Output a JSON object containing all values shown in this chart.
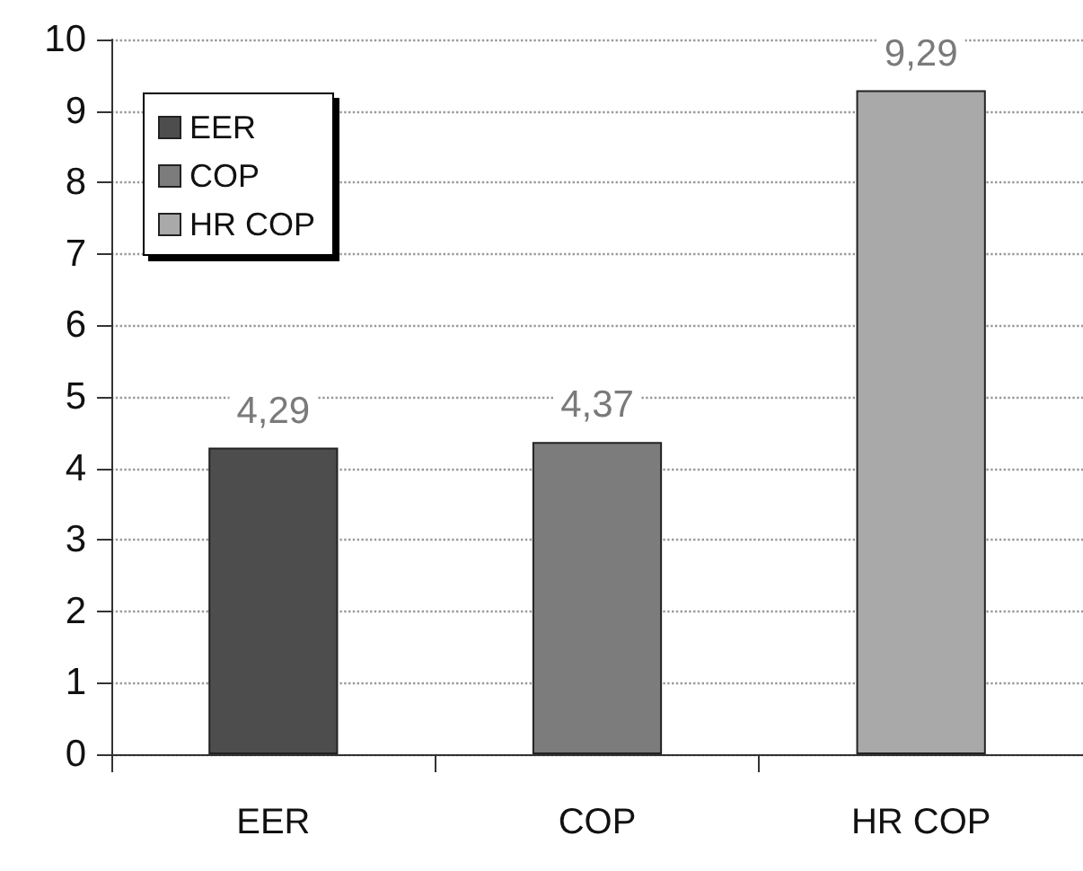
{
  "chart_data": {
    "type": "bar",
    "categories": [
      "EER",
      "COP",
      "HR COP"
    ],
    "series": [
      {
        "name": "EER",
        "color": "#4d4d4d",
        "values": [
          4.29,
          null,
          null
        ],
        "value_labels": [
          "4,29",
          null,
          null
        ]
      },
      {
        "name": "COP",
        "color": "#7c7c7c",
        "values": [
          null,
          4.37,
          null
        ],
        "value_labels": [
          null,
          "4,37",
          null
        ]
      },
      {
        "name": "HR COP",
        "color": "#a9a9a9",
        "values": [
          null,
          null,
          9.29
        ],
        "value_labels": [
          null,
          null,
          "9,29"
        ]
      }
    ],
    "ylim": [
      0,
      10
    ],
    "yticks": [
      0,
      1,
      2,
      3,
      4,
      5,
      6,
      7,
      8,
      9,
      10
    ],
    "grid": "y",
    "legend": "top left"
  }
}
